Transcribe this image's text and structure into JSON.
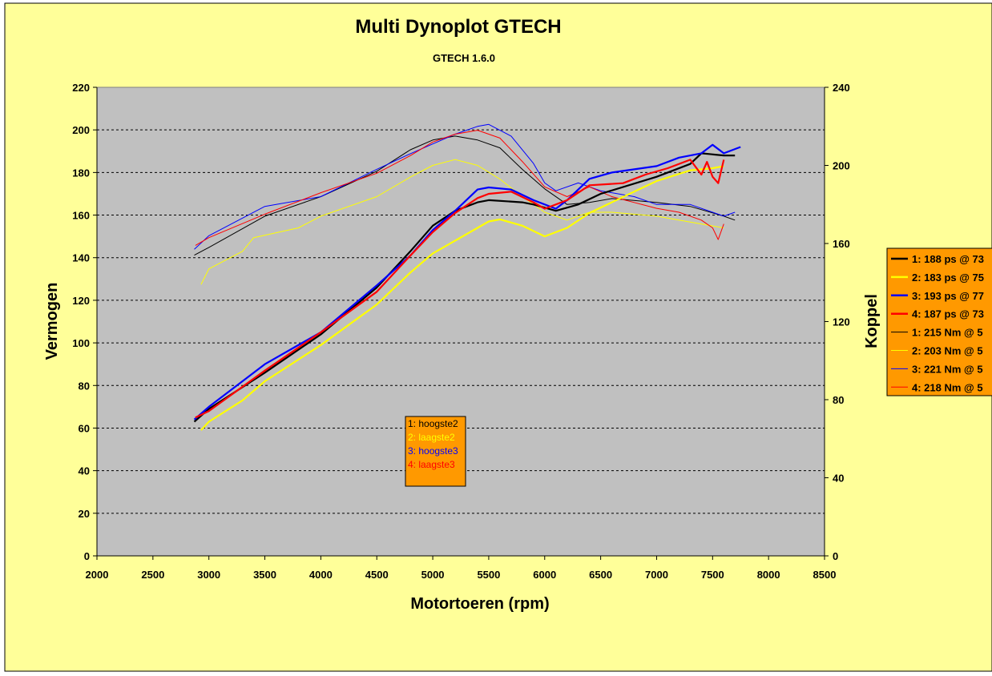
{
  "title": "Multi Dynoplot GTECH",
  "subtitle": "GTECH 1.6.0",
  "colors": {
    "background": "#FFFF99",
    "plot_area": "#C0C0C0",
    "legend_fill": "#FF9900",
    "series1": "#000000",
    "series2": "#FFFF00",
    "series3": "#0000FF",
    "series4": "#FF0000"
  },
  "note_box": {
    "lines": [
      "1: hoogste2",
      "2: laagste2",
      "3: hoogste3",
      "4: laagste3"
    ],
    "colors": [
      "#000000",
      "#FFFF00",
      "#0000FF",
      "#FF0000"
    ]
  },
  "legend": [
    {
      "label": "1: 188 ps @ 73",
      "color": "#000000",
      "weight": "thick"
    },
    {
      "label": "2: 183 ps @ 75",
      "color": "#FFFF00",
      "weight": "thick"
    },
    {
      "label": "3: 193 ps @ 77",
      "color": "#0000FF",
      "weight": "thick"
    },
    {
      "label": "4: 187 ps @ 73",
      "color": "#FF0000",
      "weight": "thick"
    },
    {
      "label": "1: 215 Nm @ 5",
      "color": "#000000",
      "weight": "thin"
    },
    {
      "label": "2: 203 Nm @ 5",
      "color": "#FFFF00",
      "weight": "thin"
    },
    {
      "label": "3: 221 Nm @ 5",
      "color": "#0000FF",
      "weight": "thin"
    },
    {
      "label": "4: 218 Nm @ 5",
      "color": "#FF0000",
      "weight": "thin"
    }
  ],
  "chart_data": {
    "type": "line",
    "xlabel": "Motortoeren (rpm)",
    "ylabel": "Vermogen",
    "y2label": "Koppel",
    "xlim": [
      2000,
      8500
    ],
    "ylim": [
      0,
      220
    ],
    "y2lim": [
      0,
      240
    ],
    "xticks": [
      2000,
      2500,
      3000,
      3500,
      4000,
      4500,
      5000,
      5500,
      6000,
      6500,
      7000,
      7500,
      8000,
      8500
    ],
    "yticks": [
      0,
      20,
      40,
      60,
      80,
      100,
      120,
      140,
      160,
      180,
      200,
      220
    ],
    "y2ticks": [
      0,
      40,
      80,
      120,
      160,
      200,
      240
    ],
    "grid": true,
    "legend_position": "right",
    "power_series": [
      {
        "color": "#000000",
        "points": [
          [
            2870,
            63
          ],
          [
            3000,
            69
          ],
          [
            3500,
            86
          ],
          [
            4000,
            104
          ],
          [
            4500,
            126
          ],
          [
            4800,
            143
          ],
          [
            5000,
            155
          ],
          [
            5200,
            162
          ],
          [
            5400,
            166
          ],
          [
            5500,
            167
          ],
          [
            5800,
            166
          ],
          [
            5900,
            165
          ],
          [
            6100,
            162
          ],
          [
            6300,
            165
          ],
          [
            6500,
            170
          ],
          [
            7000,
            178
          ],
          [
            7300,
            184
          ],
          [
            7400,
            189
          ],
          [
            7600,
            188
          ],
          [
            7700,
            188
          ]
        ]
      },
      {
        "color": "#FFFF00",
        "points": [
          [
            2930,
            59
          ],
          [
            3000,
            63
          ],
          [
            3300,
            73
          ],
          [
            3500,
            82
          ],
          [
            4000,
            99
          ],
          [
            4500,
            118
          ],
          [
            4800,
            133
          ],
          [
            5000,
            142
          ],
          [
            5500,
            157
          ],
          [
            5600,
            158
          ],
          [
            5800,
            155
          ],
          [
            6000,
            150
          ],
          [
            6200,
            154
          ],
          [
            6400,
            161
          ],
          [
            6800,
            171
          ],
          [
            7000,
            176
          ],
          [
            7300,
            181
          ],
          [
            7500,
            182
          ],
          [
            7600,
            183
          ]
        ]
      },
      {
        "color": "#0000FF",
        "points": [
          [
            2870,
            64
          ],
          [
            3000,
            70
          ],
          [
            3500,
            90
          ],
          [
            4000,
            105
          ],
          [
            4500,
            127
          ],
          [
            4800,
            141
          ],
          [
            5000,
            153
          ],
          [
            5200,
            162
          ],
          [
            5400,
            172
          ],
          [
            5500,
            173
          ],
          [
            5700,
            172
          ],
          [
            5900,
            167
          ],
          [
            6100,
            163
          ],
          [
            6200,
            167
          ],
          [
            6400,
            177
          ],
          [
            6600,
            180
          ],
          [
            7000,
            183
          ],
          [
            7200,
            187
          ],
          [
            7400,
            189
          ],
          [
            7500,
            193
          ],
          [
            7600,
            189
          ],
          [
            7700,
            191
          ],
          [
            7750,
            192
          ]
        ]
      },
      {
        "color": "#FF0000",
        "points": [
          [
            2880,
            65
          ],
          [
            3000,
            68
          ],
          [
            3500,
            87
          ],
          [
            4000,
            105
          ],
          [
            4500,
            124
          ],
          [
            4800,
            141
          ],
          [
            5000,
            152
          ],
          [
            5200,
            161
          ],
          [
            5400,
            168
          ],
          [
            5500,
            170
          ],
          [
            5700,
            171
          ],
          [
            5900,
            166
          ],
          [
            6000,
            163
          ],
          [
            6200,
            167
          ],
          [
            6400,
            174
          ],
          [
            6700,
            175
          ],
          [
            6900,
            179
          ],
          [
            7100,
            182
          ],
          [
            7300,
            186
          ],
          [
            7400,
            179
          ],
          [
            7450,
            185
          ],
          [
            7500,
            178
          ],
          [
            7550,
            175
          ],
          [
            7600,
            186
          ]
        ]
      }
    ],
    "torque_series": [
      {
        "color": "#000000",
        "points": [
          [
            2870,
            154
          ],
          [
            3000,
            158
          ],
          [
            3500,
            174
          ],
          [
            4000,
            184
          ],
          [
            4500,
            197
          ],
          [
            4800,
            208
          ],
          [
            5000,
            213
          ],
          [
            5200,
            215
          ],
          [
            5400,
            213
          ],
          [
            5600,
            209
          ],
          [
            5800,
            198
          ],
          [
            6000,
            188
          ],
          [
            6200,
            180
          ],
          [
            6400,
            181
          ],
          [
            6600,
            183
          ],
          [
            7000,
            181
          ],
          [
            7300,
            179
          ],
          [
            7600,
            174
          ],
          [
            7700,
            172
          ]
        ]
      },
      {
        "color": "#FFFF00",
        "points": [
          [
            2930,
            139
          ],
          [
            3000,
            147
          ],
          [
            3300,
            156
          ],
          [
            3400,
            163
          ],
          [
            3800,
            168
          ],
          [
            4000,
            174
          ],
          [
            4500,
            184
          ],
          [
            4800,
            194
          ],
          [
            5000,
            200
          ],
          [
            5200,
            203
          ],
          [
            5400,
            200
          ],
          [
            5600,
            193
          ],
          [
            5800,
            184
          ],
          [
            6000,
            176
          ],
          [
            6200,
            172
          ],
          [
            6400,
            176
          ],
          [
            6600,
            176
          ],
          [
            7000,
            174
          ],
          [
            7300,
            171
          ],
          [
            7600,
            168
          ]
        ]
      },
      {
        "color": "#0000FF",
        "points": [
          [
            2870,
            157
          ],
          [
            3000,
            164
          ],
          [
            3500,
            179
          ],
          [
            4000,
            184
          ],
          [
            4500,
            198
          ],
          [
            4800,
            206
          ],
          [
            5000,
            211
          ],
          [
            5200,
            216
          ],
          [
            5400,
            220
          ],
          [
            5500,
            221
          ],
          [
            5700,
            215
          ],
          [
            5900,
            201
          ],
          [
            6000,
            191
          ],
          [
            6100,
            187
          ],
          [
            6300,
            191
          ],
          [
            6500,
            187
          ],
          [
            6800,
            184
          ],
          [
            7000,
            180
          ],
          [
            7300,
            180
          ],
          [
            7500,
            176
          ],
          [
            7600,
            174
          ],
          [
            7700,
            176
          ]
        ]
      },
      {
        "color": "#FF0000",
        "points": [
          [
            2880,
            159
          ],
          [
            3000,
            163
          ],
          [
            3500,
            175
          ],
          [
            4000,
            186
          ],
          [
            4500,
            196
          ],
          [
            4800,
            205
          ],
          [
            5000,
            212
          ],
          [
            5200,
            216
          ],
          [
            5400,
            218
          ],
          [
            5600,
            214
          ],
          [
            5800,
            202
          ],
          [
            6000,
            189
          ],
          [
            6200,
            184
          ],
          [
            6400,
            189
          ],
          [
            6600,
            184
          ],
          [
            6800,
            181
          ],
          [
            7000,
            178
          ],
          [
            7200,
            176
          ],
          [
            7400,
            172
          ],
          [
            7500,
            168
          ],
          [
            7550,
            162
          ],
          [
            7600,
            170
          ]
        ]
      }
    ]
  }
}
